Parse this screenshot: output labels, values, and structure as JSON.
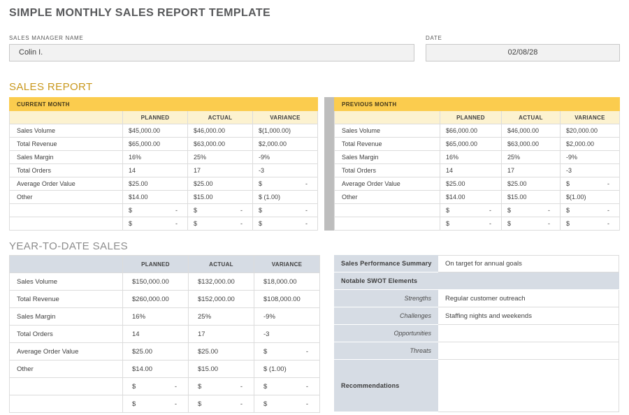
{
  "page_title": "SIMPLE MONTHLY SALES REPORT TEMPLATE",
  "fields": {
    "manager": {
      "label": "SALES MANAGER NAME",
      "value": "Colin I."
    },
    "date": {
      "label": "DATE",
      "value": "02/08/28"
    }
  },
  "colors": {
    "accent_gold": "#FBCC4E",
    "pale_yellow": "#FCF2D0",
    "blue_gray": "#D6DCE4",
    "divider_gray": "#BDBDBD",
    "heading_gold_text": "#C9981D",
    "heading_gray_text": "#8C8C8C"
  },
  "sales_report": {
    "heading": "SALES REPORT",
    "columns": [
      "PLANNED",
      "ACTUAL",
      "VARIANCE"
    ],
    "current_month": {
      "title": "CURRENT MONTH",
      "rows": [
        [
          "Sales Volume",
          "$45,000.00",
          "$46,000.00",
          "$(1,000.00)"
        ],
        [
          "Total Revenue",
          "$65,000.00",
          "$63,000.00",
          "$2,000.00"
        ],
        [
          "Sales Margin",
          "16%",
          "25%",
          "-9%"
        ],
        [
          "Total Orders",
          "14",
          "17",
          "-3"
        ],
        [
          "Average Order Value",
          "$25.00",
          "$25.00",
          "$ -"
        ],
        [
          "Other",
          "$14.00",
          "$15.00",
          "$ (1.00)"
        ],
        [
          "",
          "$ -",
          "$ -",
          "$ -"
        ],
        [
          "",
          "$ -",
          "$ -",
          "$ -"
        ]
      ]
    },
    "previous_month": {
      "title": "PREVIOUS MONTH",
      "rows": [
        [
          "Sales Volume",
          "$66,000.00",
          "$46,000.00",
          "$20,000.00"
        ],
        [
          "Total Revenue",
          "$65,000.00",
          "$63,000.00",
          "$2,000.00"
        ],
        [
          "Sales Margin",
          "16%",
          "25%",
          "-9%"
        ],
        [
          "Total Orders",
          "14",
          "17",
          "-3"
        ],
        [
          "Average Order Value",
          "$25.00",
          "$25.00",
          "$ -"
        ],
        [
          "Other",
          "$14.00",
          "$15.00",
          "$(1.00)"
        ],
        [
          "",
          "$ -",
          "$ -",
          "$ -"
        ],
        [
          "",
          "$ -",
          "$ -",
          "$ -"
        ]
      ]
    }
  },
  "ytd": {
    "heading": "YEAR-TO-DATE SALES",
    "columns": [
      "PLANNED",
      "ACTUAL",
      "VARIANCE"
    ],
    "rows": [
      [
        "Sales Volume",
        "$150,000.00",
        "$132,000.00",
        "$18,000.00"
      ],
      [
        "Total Revenue",
        "$260,000.00",
        "$152,000.00",
        "$108,000.00"
      ],
      [
        "Sales Margin",
        "16%",
        "25%",
        "-9%"
      ],
      [
        "Total Orders",
        "14",
        "17",
        "-3"
      ],
      [
        "Average Order Value",
        "$25.00",
        "$25.00",
        "$ -"
      ],
      [
        "Other",
        "$14.00",
        "$15.00",
        "$ (1.00)"
      ],
      [
        "",
        "$ -",
        "$ -",
        "$ -"
      ],
      [
        "",
        "$ -",
        "$ -",
        "$ -"
      ]
    ]
  },
  "summary_panel": {
    "rows": [
      {
        "label": "Sales Performance Summary",
        "value": "On target for annual goals",
        "style": "bold"
      },
      {
        "label": "Notable SWOT Elements",
        "value": "",
        "style": "bold",
        "full": true
      },
      {
        "label": "Strengths",
        "value": "Regular customer outreach",
        "style": "italic"
      },
      {
        "label": "Challenges",
        "value": "Staffing nights and weekends",
        "style": "italic"
      },
      {
        "label": "Opportunities",
        "value": "",
        "style": "italic"
      },
      {
        "label": "Threats",
        "value": "",
        "style": "italic"
      },
      {
        "label": "Recommendations",
        "value": "",
        "style": "bold",
        "tall": true
      }
    ]
  }
}
